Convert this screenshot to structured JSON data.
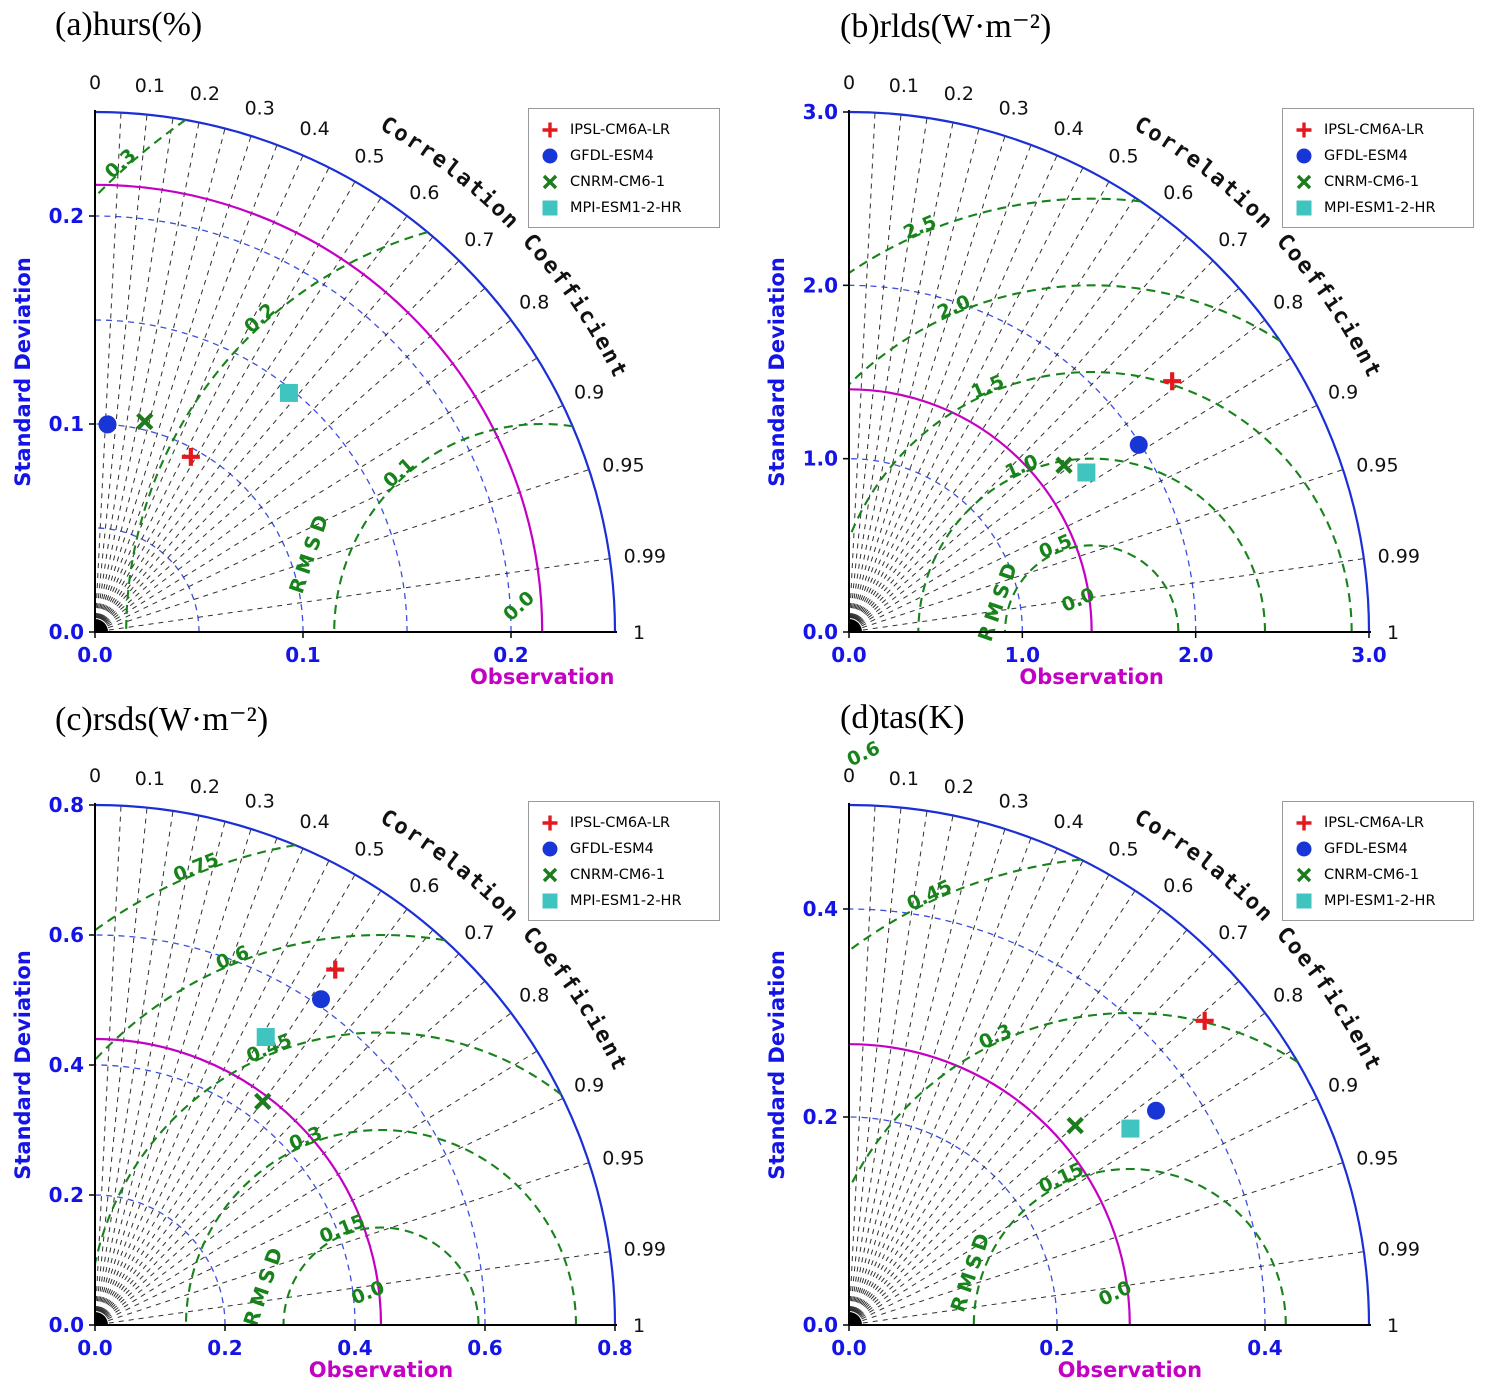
{
  "figure": {
    "background": "#ffffff"
  },
  "labels": {
    "std_axis": "Standard Deviation",
    "corr_axis": "Correlation Coefficient",
    "obs_axis": "Observation",
    "rmsd": "RMSD"
  },
  "colors": {
    "outer_arc": "#1b2fd6",
    "std_grid": "#3b4fe0",
    "observation": "#c400c4",
    "rmsd": "#17831a",
    "corr_rays": "#1a1a1a",
    "tick_text": "#1414e6"
  },
  "legend": {
    "entries": [
      {
        "label": "IPSL-CM6A-LR",
        "marker": "plus",
        "color": "#e3191e"
      },
      {
        "label": "GFDL-ESM4",
        "marker": "circle",
        "color": "#1836d6"
      },
      {
        "label": "CNRM-CM6-1",
        "marker": "x",
        "color": "#1e7b1e"
      },
      {
        "label": "MPI-ESM1-2-HR",
        "marker": "square",
        "color": "#40c4c0"
      }
    ]
  },
  "corr_ticks": {
    "labels": [
      "0",
      "0.1",
      "0.2",
      "0.3",
      "0.4",
      "0.5",
      "0.6",
      "0.7",
      "0.8",
      "0.9",
      "0.95",
      "0.99",
      "1"
    ],
    "ray_values": [
      0.05,
      0.1,
      0.15,
      0.2,
      0.25,
      0.3,
      0.35,
      0.4,
      0.45,
      0.5,
      0.55,
      0.6,
      0.65,
      0.7,
      0.75,
      0.8,
      0.85,
      0.9,
      0.95,
      0.99
    ]
  },
  "chart_data": [
    {
      "type": "taylor",
      "panel": "a",
      "title": "(a)hurs(%)",
      "axis_max": 0.25,
      "std_tick_labels": [
        "0.0",
        "0.1",
        "0.2"
      ],
      "std_grid_arcs": [
        0.05,
        0.1,
        0.15,
        0.2
      ],
      "observation_std": 0.215,
      "rmsd_labels": [
        "0.3",
        "0.2",
        "0.1",
        "0.0"
      ],
      "rmsd_label_angle_deg": 132,
      "rmsd_text_radius": 0.115,
      "series": [
        {
          "model": "IPSL-CM6A-LR",
          "std": 0.096,
          "corr": 0.48
        },
        {
          "model": "GFDL-ESM4",
          "std": 0.1,
          "corr": 0.06
        },
        {
          "model": "CNRM-CM6-1",
          "std": 0.104,
          "corr": 0.23
        },
        {
          "model": "MPI-ESM1-2-HR",
          "std": 0.148,
          "corr": 0.63
        }
      ]
    },
    {
      "type": "taylor",
      "panel": "b",
      "title": "(b)rlds(W·m⁻²)",
      "axis_max": 3.0,
      "std_tick_labels": [
        "0.0",
        "1.0",
        "2.0",
        "3.0"
      ],
      "std_grid_arcs": [
        1.0,
        2.0
      ],
      "observation_std": 1.4,
      "rmsd_labels": [
        "2.5",
        "2.0",
        "1.5",
        "1.0",
        "0.5",
        "0.0"
      ],
      "rmsd_label_angle_deg": 113,
      "rmsd_text_radius": 0.53,
      "series": [
        {
          "model": "IPSL-CM6A-LR",
          "std": 2.36,
          "corr": 0.79
        },
        {
          "model": "GFDL-ESM4",
          "std": 1.99,
          "corr": 0.84
        },
        {
          "model": "CNRM-CM6-1",
          "std": 1.57,
          "corr": 0.79
        },
        {
          "model": "MPI-ESM1-2-HR",
          "std": 1.65,
          "corr": 0.83
        }
      ]
    },
    {
      "type": "taylor",
      "panel": "c",
      "title": "(c)rsds(W·m⁻²)",
      "axis_max": 0.8,
      "std_tick_labels": [
        "0.0",
        "0.2",
        "0.4",
        "0.6",
        "0.8"
      ],
      "std_grid_arcs": [
        0.2,
        0.4,
        0.6
      ],
      "observation_std": 0.44,
      "rmsd_labels": [
        "0.75",
        "0.6",
        "0.45",
        "0.3",
        "0.15",
        "0.0"
      ],
      "rmsd_label_angle_deg": 112,
      "rmsd_text_radius": 0.18,
      "series": [
        {
          "model": "IPSL-CM6A-LR",
          "std": 0.66,
          "corr": 0.56
        },
        {
          "model": "GFDL-ESM4",
          "std": 0.61,
          "corr": 0.57
        },
        {
          "model": "CNRM-CM6-1",
          "std": 0.43,
          "corr": 0.6
        },
        {
          "model": "MPI-ESM1-2-HR",
          "std": 0.515,
          "corr": 0.51
        }
      ]
    },
    {
      "type": "taylor",
      "panel": "d",
      "title": "(d)tas(K)",
      "axis_max": 0.5,
      "std_tick_labels": [
        "0.0",
        "0.2",
        "0.4"
      ],
      "std_grid_arcs": [
        0.2,
        0.4
      ],
      "observation_std": 0.27,
      "rmsd_labels": [
        "0.6",
        "0.45",
        "0.3",
        "0.15",
        "0.0"
      ],
      "rmsd_label_angle_deg": 115,
      "rmsd_text_radius": 0.155,
      "series": [
        {
          "model": "IPSL-CM6A-LR",
          "std": 0.45,
          "corr": 0.76
        },
        {
          "model": "GFDL-ESM4",
          "std": 0.36,
          "corr": 0.82
        },
        {
          "model": "CNRM-CM6-1",
          "std": 0.29,
          "corr": 0.75
        },
        {
          "model": "MPI-ESM1-2-HR",
          "std": 0.33,
          "corr": 0.82
        }
      ]
    }
  ]
}
